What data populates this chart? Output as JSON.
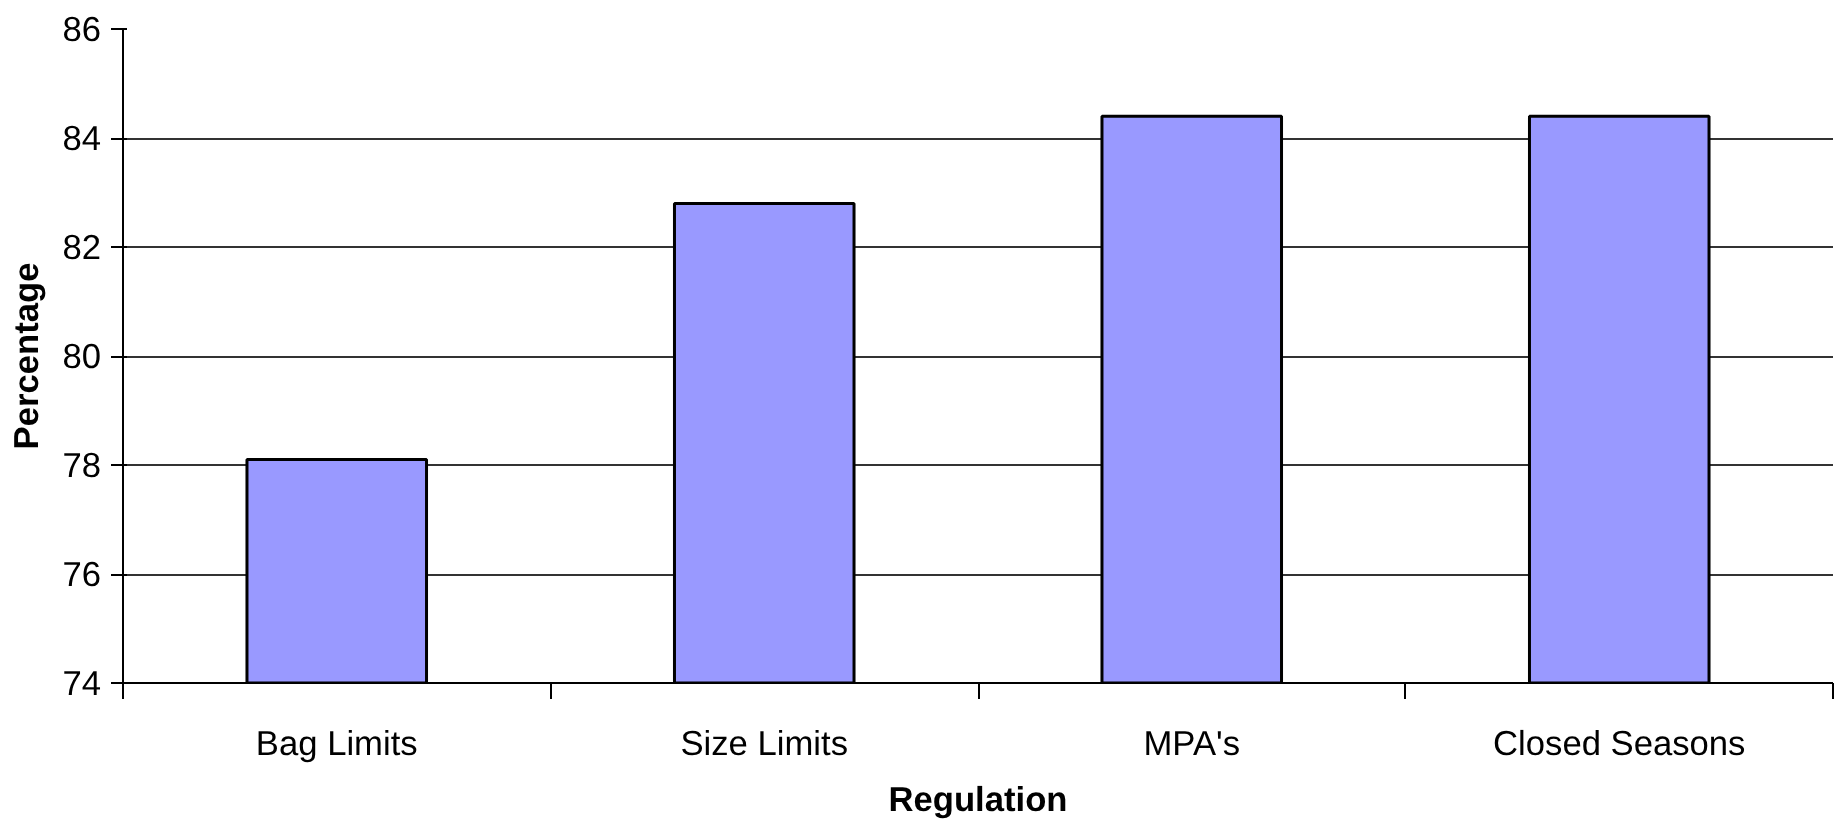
{
  "chart_data": {
    "type": "bar",
    "xlabel": "Regulation",
    "ylabel": "Percentage",
    "categories": [
      "Bag Limits",
      "Size Limits",
      "MPA's",
      "Closed Seasons"
    ],
    "values": [
      78.1,
      82.8,
      84.4,
      84.4
    ],
    "color": "#9999ff",
    "ylim": [
      74,
      86
    ],
    "yticks": [
      74,
      76,
      78,
      80,
      82,
      84,
      86
    ],
    "grid": "y"
  }
}
